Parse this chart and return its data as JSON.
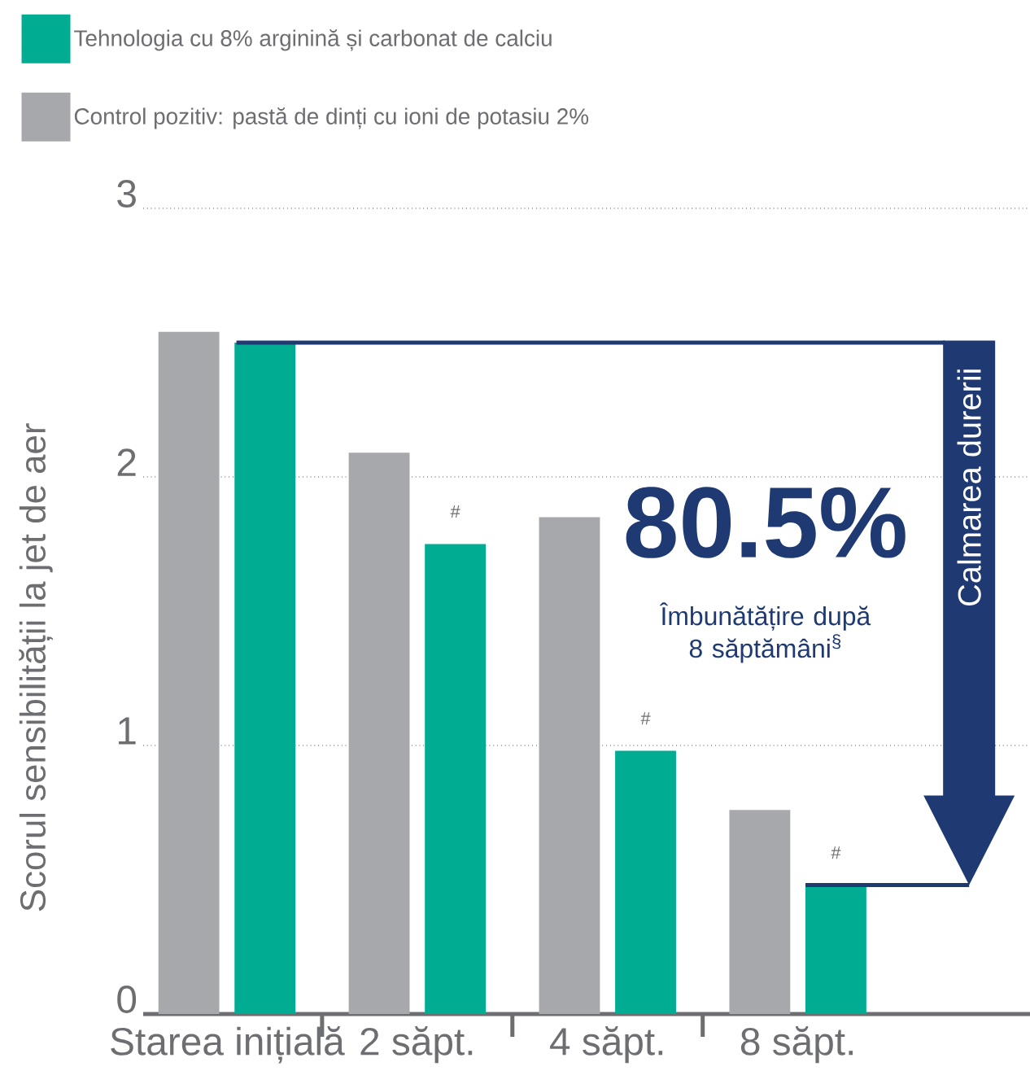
{
  "chart_data": {
    "type": "bar",
    "categories": [
      "Starea inițială",
      "2 săpt.",
      "4 săpt.",
      "8 săpt."
    ],
    "series": [
      {
        "name": "Control pozitiv: pastă de dinți cu ioni de potasiu 2%",
        "color": "#a7a8ab",
        "values": [
          2.54,
          2.09,
          1.85,
          0.76
        ]
      },
      {
        "name": "Tehnologia cu 8% arginină și carbonat de calciu",
        "color": "#00ad93",
        "values": [
          2.5,
          1.75,
          0.98,
          0.48
        ]
      }
    ],
    "ylabel": "Scorul sensibilității la jet de aer",
    "ylim": [
      0,
      3
    ],
    "yticks": [
      0,
      1,
      2,
      3
    ],
    "grid": "y",
    "legend": "top left",
    "annotations": [
      {
        "text": "#",
        "x": "2 săpt.",
        "y": 1.75
      },
      {
        "text": "#",
        "x": "4 săpt.",
        "y": 0.98
      },
      {
        "text": "#",
        "x": "8 săpt.",
        "y": 0.48
      },
      "80.5%",
      "Îmbunătățire după 8 săptămâni$^{§}$",
      "Calmarea durerii"
    ]
  }
}
